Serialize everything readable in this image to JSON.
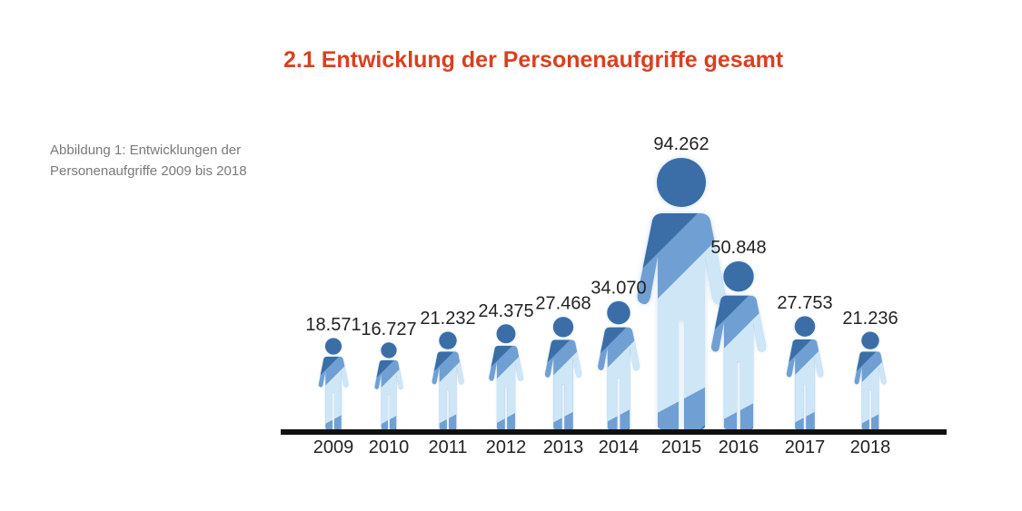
{
  "heading": {
    "number": "2.1",
    "text": "Entwicklung der Personenaufgriffe gesamt"
  },
  "caption": "Abbildung 1: Entwicklungen der Personenaufgriffe 2009 bis 2018",
  "colors": {
    "title": "#d9401f",
    "caption": "#7a7a7a",
    "figure_dark": "#3b6ea6",
    "figure_mid": "#6f9fd3",
    "figure_light": "#cfe6f7",
    "baseline": "#111111",
    "label_text": "#222222"
  },
  "chart_data": {
    "type": "bar",
    "mark": "person-pictogram",
    "categories": [
      "2009",
      "2010",
      "2011",
      "2012",
      "2013",
      "2014",
      "2015",
      "2016",
      "2017",
      "2018"
    ],
    "values": [
      18571,
      16727,
      21232,
      24375,
      27468,
      34070,
      94262,
      50848,
      27753,
      21236
    ],
    "value_labels": [
      "18.571",
      "16.727",
      "21.232",
      "24.375",
      "27.468",
      "34.070",
      "94.262",
      "50.848",
      "27.753",
      "21.236"
    ],
    "title": "",
    "xlabel": "",
    "ylabel": "",
    "ylim": [
      0,
      100000
    ],
    "grid": false,
    "legend": "none"
  }
}
